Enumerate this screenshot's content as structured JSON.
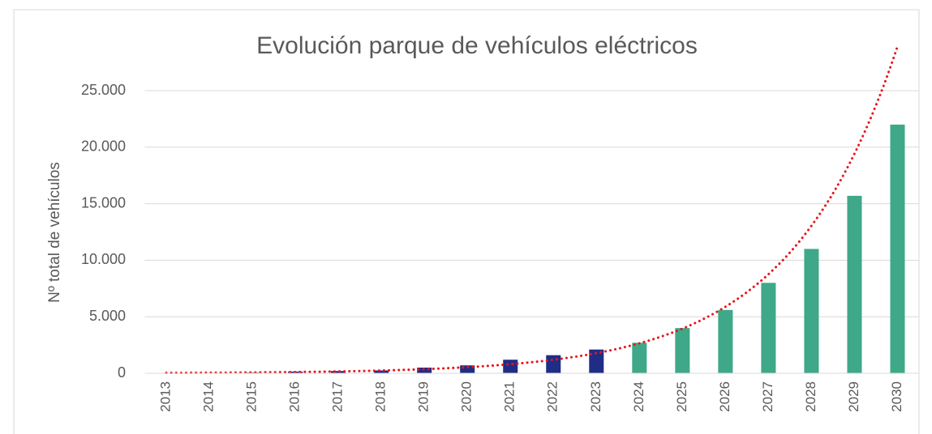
{
  "chart_data": {
    "type": "bar",
    "title": "Evolución parque de vehículos eléctricos",
    "y_label": "Nº total de vehículos",
    "categories": [
      "2013",
      "2014",
      "2015",
      "2016",
      "2017",
      "2018",
      "2019",
      "2020",
      "2021",
      "2022",
      "2023",
      "2024",
      "2025",
      "2026",
      "2027",
      "2028",
      "2029",
      "2030"
    ],
    "values": [
      20,
      30,
      60,
      150,
      200,
      250,
      500,
      700,
      1200,
      1600,
      2100,
      2700,
      4000,
      5600,
      8000,
      11000,
      15700,
      22000
    ],
    "colors": [
      "#1f2d86",
      "#1f2d86",
      "#1f2d86",
      "#1f2d86",
      "#1f2d86",
      "#1f2d86",
      "#1f2d86",
      "#1f2d86",
      "#1f2d86",
      "#1f2d86",
      "#1f2d86",
      "#3fa888",
      "#3fa888",
      "#3fa888",
      "#3fa888",
      "#3fa888",
      "#3fa888",
      "#3fa888"
    ],
    "ylim": [
      0,
      25000
    ],
    "yticks": [
      0,
      {
        "value": 5000,
        "label": "5.000"
      },
      {
        "value": 10000,
        "label": "10.000"
      },
      {
        "value": 15000,
        "label": "15.000"
      },
      {
        "value": 20000,
        "label": "20.000"
      },
      {
        "value": 25000,
        "label": "25.000"
      }
    ],
    "grid": true,
    "trendline": {
      "type": "exponential",
      "color": "#e8141b"
    }
  }
}
